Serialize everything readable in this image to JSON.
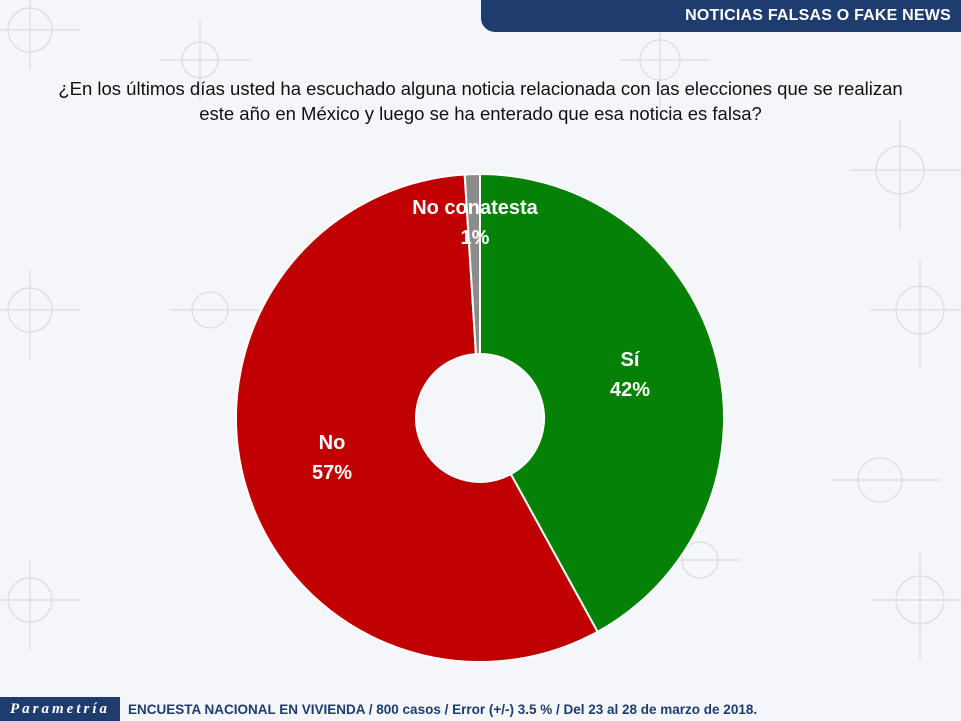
{
  "header": {
    "title": "NOTICIAS FALSAS O FAKE NEWS"
  },
  "question": {
    "line1": "¿En los últimos días usted ha escuchado alguna noticia relacionada con las elecciones que se realizan",
    "line2": "este año en México y luego se ha enterado que esa noticia es falsa?"
  },
  "colors": {
    "si": "#058105",
    "no": "#c00000",
    "nc": "#8c8c8c",
    "brand": "#1f3c6e"
  },
  "chart_data": {
    "type": "pie",
    "donut": true,
    "slices": [
      {
        "label": "Sí",
        "value": 42,
        "value_label": "42%",
        "color": "#058105"
      },
      {
        "label": "No",
        "value": 57,
        "value_label": "57%",
        "color": "#c00000"
      },
      {
        "label": "No conatesta",
        "value": 1,
        "value_label": "1%",
        "color": "#8c8c8c"
      }
    ]
  },
  "footer": {
    "brand": "Parametría",
    "note": "ENCUESTA NACIONAL EN VIVIENDA / 800 casos / Error (+/-) 3.5 % / Del 23 al 28 de marzo de 2018."
  }
}
